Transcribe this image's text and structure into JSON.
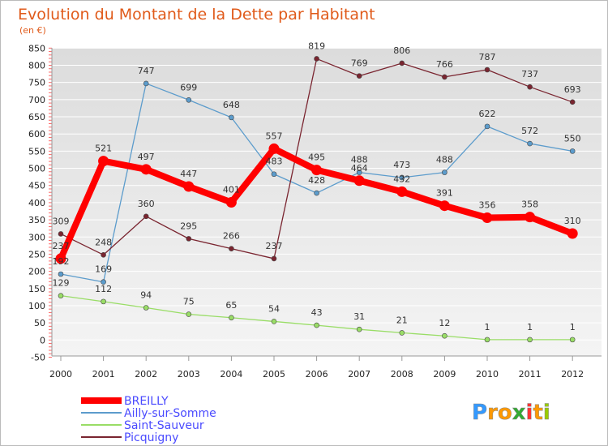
{
  "chart_data": {
    "type": "line",
    "title": "Evolution du Montant de la Dette par Habitant",
    "subtitle": "(en €)",
    "x": [
      "2000",
      "2001",
      "2002",
      "2003",
      "2004",
      "2005",
      "2006",
      "2007",
      "2008",
      "2009",
      "2010",
      "2011",
      "2012"
    ],
    "y_ticks": [
      "-50",
      "0",
      "50",
      "100",
      "150",
      "200",
      "250",
      "300",
      "350",
      "400",
      "450",
      "500",
      "550",
      "600",
      "650",
      "700",
      "750",
      "800",
      "850"
    ],
    "ylim": [
      -50,
      860
    ],
    "grid": true,
    "legend_position": "bottom-left",
    "series": [
      {
        "name": "BREILLY",
        "color": "#ff0000",
        "values": [
          237,
          521,
          497,
          447,
          401,
          557,
          495,
          464,
          432,
          391,
          356,
          358,
          310
        ],
        "labels": [
          "237",
          "521",
          "497",
          "447",
          "401",
          "557",
          "495",
          "464",
          "432",
          "391",
          "356",
          "358",
          "310"
        ]
      },
      {
        "name": "Ailly-sur-Somme",
        "color": "#5c9ccc",
        "values": [
          192,
          169,
          747,
          699,
          648,
          483,
          428,
          488,
          473,
          488,
          622,
          572,
          550
        ],
        "labels": [
          "192",
          "169",
          "747",
          "699",
          "648",
          "483",
          "428",
          "488",
          "473",
          "488",
          "622",
          "572",
          "550"
        ]
      },
      {
        "name": "Saint-Sauveur",
        "color": "#99dd66",
        "values": [
          129,
          112,
          94,
          75,
          65,
          54,
          43,
          31,
          21,
          12,
          1,
          1,
          1
        ],
        "labels": [
          "129",
          "112",
          "94",
          "75",
          "65",
          "54",
          "43",
          "31",
          "21",
          "12",
          "1",
          "1",
          "1"
        ]
      },
      {
        "name": "Picquigny",
        "color": "#7a2530",
        "values": [
          309,
          248,
          360,
          295,
          266,
          237,
          819,
          769,
          806,
          766,
          787,
          737,
          693
        ],
        "labels": [
          "309",
          "248",
          "360",
          "295",
          "266",
          "237",
          "819",
          "769",
          "806",
          "766",
          "787",
          "737",
          "693"
        ]
      }
    ]
  },
  "brand": {
    "letters": [
      "P",
      "r",
      "o",
      "x",
      "i",
      "t",
      "i"
    ],
    "colors": [
      "#3399ff",
      "#ff9900",
      "#ff9900",
      "#33aa33",
      "#ff3333",
      "#ff9900",
      "#99cc00"
    ]
  }
}
